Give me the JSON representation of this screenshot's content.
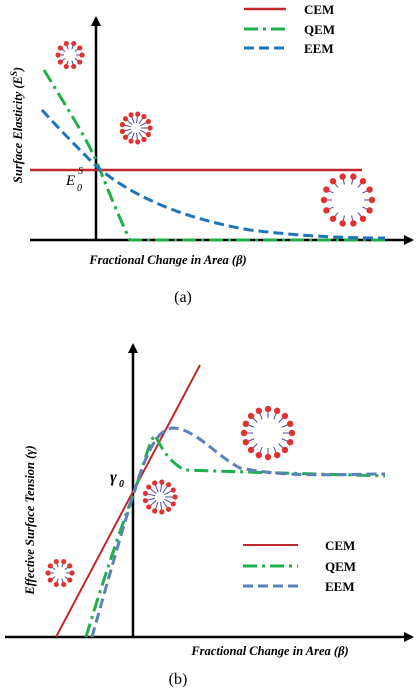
{
  "panel_a": {
    "ylabel": "Surface Elasticity (E",
    "ylabel_sup": "S",
    "ylabel_close": ")",
    "xlabel": "Fractional Change in Area (β)",
    "point_label": "E",
    "point_sup": "S",
    "point_sub": "0",
    "caption": "(a)",
    "legend": [
      {
        "label": "CEM",
        "color": "#c0282d",
        "style": "solid"
      },
      {
        "label": "QEM",
        "color": "#1fb04c",
        "style": "dashdot"
      },
      {
        "label": "EEM",
        "color": "#1f75b8",
        "style": "dashed"
      }
    ]
  },
  "panel_b": {
    "ylabel": "Effective Surface Tension (γ)",
    "xlabel": "Fractional Change in Area (β)",
    "point_label": "γ",
    "point_sub": "0",
    "caption": "(b)",
    "legend": [
      {
        "label": "CEM",
        "color": "#c0282d",
        "style": "solid"
      },
      {
        "label": "QEM",
        "color": "#1fb04c",
        "style": "dashdot"
      },
      {
        "label": "EEM",
        "color": "#5a82b8",
        "style": "dashed"
      }
    ]
  },
  "colors": {
    "cem": "#c0282d",
    "qem": "#1fb04c",
    "eem": "#1f75b8",
    "eem_b": "#5a82b8",
    "lipid_head": "#e03232",
    "lipid_tail": "#4a4aa0"
  },
  "icons": [
    "micelle-icon",
    "bubble-icon"
  ]
}
